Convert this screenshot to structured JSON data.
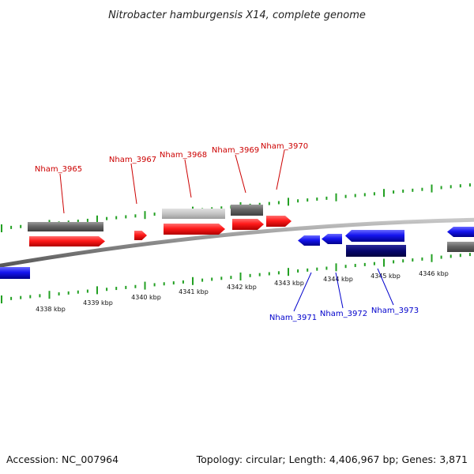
{
  "title": "Nitrobacter hamburgensis X14, complete genome",
  "footer": {
    "accession": "Accession: NC_007964",
    "summary": "Topology: circular; Length: 4,406,967 bp; Genes: 3,871"
  },
  "colors": {
    "forward_gene": "#ff1a1a",
    "reverse_gene": "#1515f0",
    "reverse_gene_dark": "#06066e",
    "gray_dark": "#666666",
    "gray_light": "#c4c4c4",
    "backbone": "#888888",
    "tick": "#22a022",
    "label_forward": "#cc0000",
    "label_reverse": "#0000cc"
  },
  "scale_labels": [
    "4338 kbp",
    "4339 kbp",
    "4340 kbp",
    "4341 kbp",
    "4342 kbp",
    "4343 kbp",
    "4344 kbp",
    "4345 kbp",
    "4346 kbp"
  ],
  "gene_labels": {
    "forward": [
      "Nham_3965",
      "Nham_3967",
      "Nham_3968",
      "Nham_3969",
      "Nham_3970"
    ],
    "reverse": [
      "Nham_3971",
      "Nham_3972",
      "Nham_3973"
    ]
  }
}
